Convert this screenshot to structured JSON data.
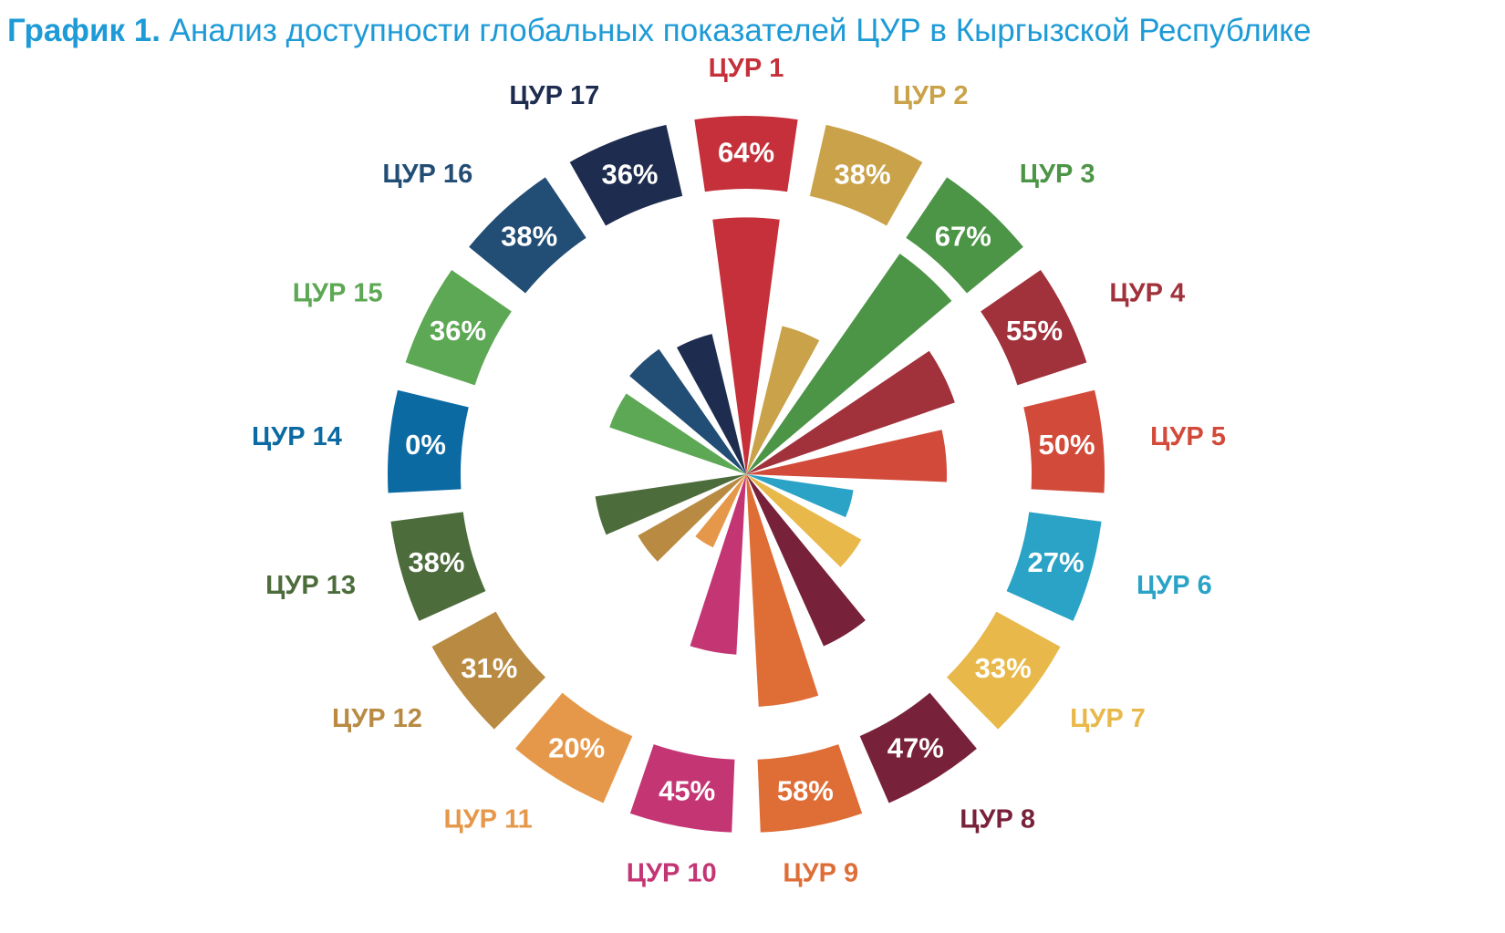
{
  "title": {
    "lead": "График 1.",
    "text": "Анализ доступности глобальных показателей ЦУР в Кыргызской Республике",
    "lead_color": "#1E9BD7",
    "text_color": "#1E9BD7"
  },
  "chart_data": {
    "type": "polar-bar",
    "value_unit": "%",
    "ylim": [
      0,
      100
    ],
    "categories": [
      "ЦУР 1",
      "ЦУР 2",
      "ЦУР 3",
      "ЦУР 4",
      "ЦУР 5",
      "ЦУР 6",
      "ЦУР 7",
      "ЦУР 8",
      "ЦУР 9",
      "ЦУР 10",
      "ЦУР 11",
      "ЦУР 12",
      "ЦУР 13",
      "ЦУР 14",
      "ЦУР 15",
      "ЦУР 16",
      "ЦУР 17"
    ],
    "values": [
      64,
      38,
      67,
      55,
      50,
      27,
      33,
      47,
      58,
      45,
      20,
      31,
      38,
      0,
      36,
      38,
      36
    ],
    "value_labels": [
      "64%",
      "38%",
      "67%",
      "55%",
      "50%",
      "27%",
      "33%",
      "47%",
      "58%",
      "45%",
      "20%",
      "31%",
      "38%",
      "0%",
      "36%",
      "38%",
      "36%"
    ],
    "colors": [
      "#C5303A",
      "#C9A249",
      "#4C9446",
      "#A1313B",
      "#D24A39",
      "#2AA3C7",
      "#E8B84A",
      "#78213A",
      "#DE6D36",
      "#C43574",
      "#E6984A",
      "#B88A42",
      "#4D6C3C",
      "#0C6AA3",
      "#5DA854",
      "#224D74",
      "#1E2C4F"
    ]
  }
}
